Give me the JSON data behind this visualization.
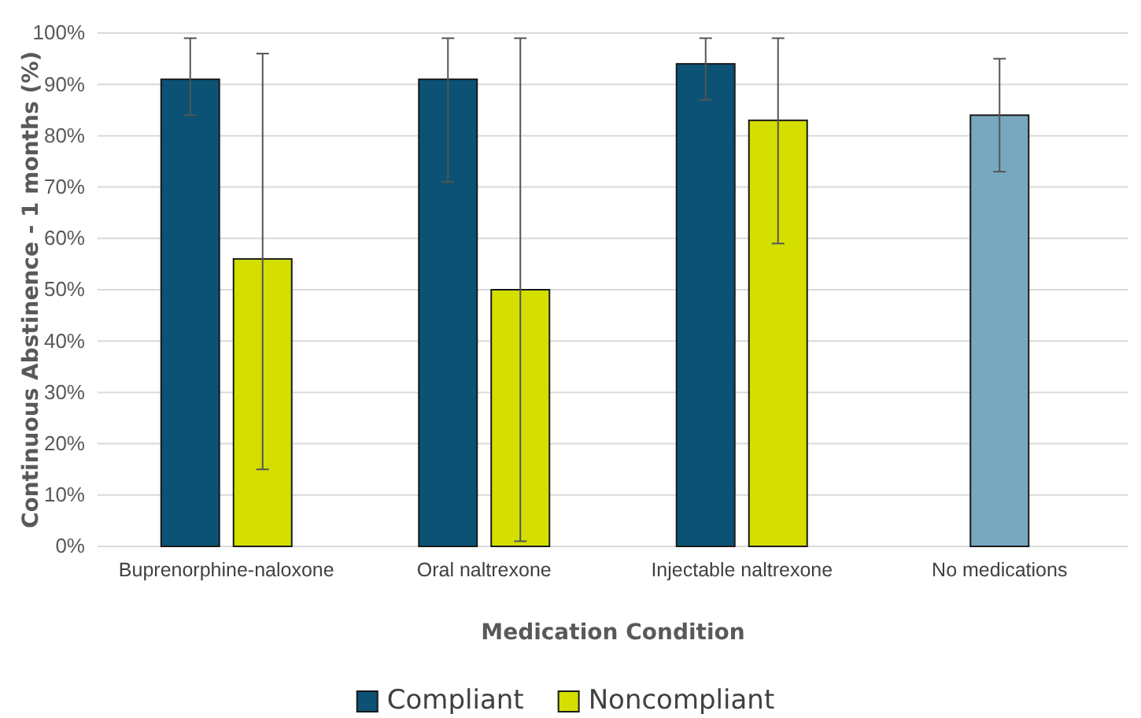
{
  "chart_data": {
    "type": "bar",
    "xlabel": "Medication Condition",
    "ylabel": "Continuous Abstinence - 1 months (%)",
    "categories": [
      "Buprenorphine-naloxone",
      "Oral naltrexone",
      "Injectable naltrexone",
      "No medications"
    ],
    "series": [
      {
        "name": "Compliant",
        "color": "#0b5275",
        "colors": [
          "#0b5275",
          "#0b5275",
          "#0b5275",
          "#78a8bf"
        ],
        "values": [
          91,
          91,
          94,
          84
        ],
        "errors": [
          [
            84,
            99
          ],
          [
            71,
            99
          ],
          [
            87,
            99
          ],
          [
            73,
            95
          ]
        ]
      },
      {
        "name": "Noncompliant",
        "color": "#d4df00",
        "values": [
          56,
          50,
          83,
          null
        ],
        "errors": [
          [
            15,
            96
          ],
          [
            1,
            99
          ],
          [
            59,
            99
          ],
          null
        ]
      }
    ],
    "ylim": [
      0,
      100
    ],
    "yticks": [
      {
        "value": 0,
        "label": "0%"
      },
      {
        "value": 10,
        "label": "10%"
      },
      {
        "value": 20,
        "label": "20%"
      },
      {
        "value": 30,
        "label": "30%"
      },
      {
        "value": 40,
        "label": "40%"
      },
      {
        "value": 50,
        "label": "50%"
      },
      {
        "value": 60,
        "label": "60%"
      },
      {
        "value": 70,
        "label": "70%"
      },
      {
        "value": 80,
        "label": "80%"
      },
      {
        "value": 90,
        "label": "90%"
      },
      {
        "value": 100,
        "label": "100%"
      }
    ],
    "grid": "y",
    "legend": "bottom"
  }
}
